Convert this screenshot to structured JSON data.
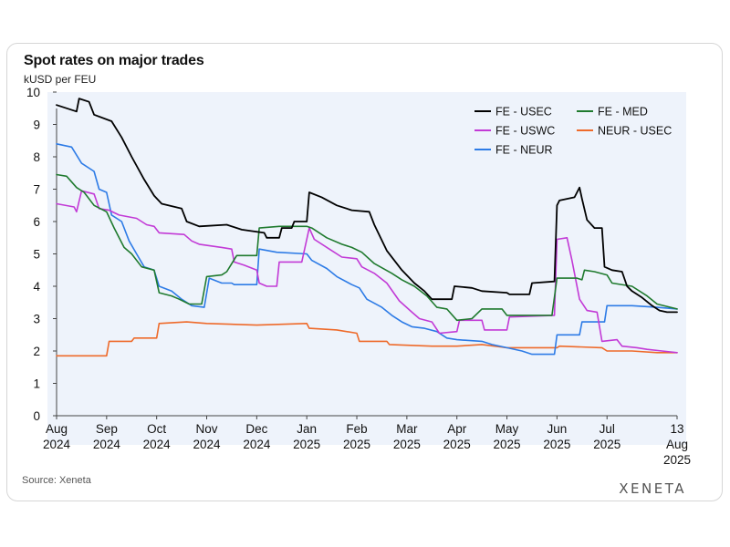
{
  "header": {
    "title": "Spot rates on major trades",
    "subtitle": "kUSD per FEU"
  },
  "footer": {
    "source": "Source: Xeneta",
    "brand": "XENETA"
  },
  "colors": {
    "plot_bg": "#eef3fb",
    "axis": "#444444",
    "FE - USEC": "#000000",
    "FE - MED": "#1f7a2e",
    "FE - USWC": "#c23ad6",
    "NEUR - USEC": "#ee6a2a",
    "FE - NEUR": "#2d7be6"
  },
  "chart_data": {
    "type": "line",
    "title": "Spot rates on major trades",
    "ylabel": "kUSD per FEU",
    "xlabel": "",
    "ylim": [
      0,
      10
    ],
    "yticks": [
      0,
      1,
      2,
      3,
      4,
      5,
      6,
      7,
      8,
      9,
      10
    ],
    "xlim": [
      0,
      12.4
    ],
    "xticks": [
      {
        "x": 0,
        "label": [
          "Aug",
          "2024"
        ]
      },
      {
        "x": 1,
        "label": [
          "Sep",
          "2024"
        ]
      },
      {
        "x": 2,
        "label": [
          "Oct",
          "2024"
        ]
      },
      {
        "x": 3,
        "label": [
          "Nov",
          "2024"
        ]
      },
      {
        "x": 4,
        "label": [
          "Dec",
          "2024"
        ]
      },
      {
        "x": 5,
        "label": [
          "Jan",
          "2025"
        ]
      },
      {
        "x": 6,
        "label": [
          "Feb",
          "2025"
        ]
      },
      {
        "x": 7,
        "label": [
          "Mar",
          "2025"
        ]
      },
      {
        "x": 8,
        "label": [
          "Apr",
          "2025"
        ]
      },
      {
        "x": 9,
        "label": [
          "May",
          "2025"
        ]
      },
      {
        "x": 10,
        "label": [
          "Jun",
          "2025"
        ]
      },
      {
        "x": 11,
        "label": [
          "Jul",
          "2025"
        ]
      },
      {
        "x": 12.4,
        "label": [
          "13",
          "Aug",
          "2025"
        ]
      }
    ],
    "legend": {
      "placement": "top-right",
      "entries": [
        "FE - USEC",
        "FE - MED",
        "FE - USWC",
        "NEUR - USEC",
        "FE - NEUR"
      ]
    },
    "series": [
      {
        "name": "FE - USEC",
        "points": [
          [
            0,
            9.6
          ],
          [
            0.4,
            9.4
          ],
          [
            0.45,
            9.8
          ],
          [
            0.65,
            9.7
          ],
          [
            0.75,
            9.3
          ],
          [
            1.1,
            9.1
          ],
          [
            1.3,
            8.6
          ],
          [
            1.5,
            8.0
          ],
          [
            1.75,
            7.3
          ],
          [
            1.95,
            6.8
          ],
          [
            2.1,
            6.55
          ],
          [
            2.5,
            6.4
          ],
          [
            2.6,
            6.0
          ],
          [
            2.85,
            5.85
          ],
          [
            3.4,
            5.9
          ],
          [
            3.7,
            5.75
          ],
          [
            4.15,
            5.65
          ],
          [
            4.2,
            5.5
          ],
          [
            4.45,
            5.5
          ],
          [
            4.5,
            5.8
          ],
          [
            4.7,
            5.8
          ],
          [
            4.75,
            6.0
          ],
          [
            5.0,
            6.0
          ],
          [
            5.05,
            6.9
          ],
          [
            5.3,
            6.75
          ],
          [
            5.6,
            6.5
          ],
          [
            5.9,
            6.35
          ],
          [
            6.25,
            6.3
          ],
          [
            6.35,
            5.9
          ],
          [
            6.6,
            5.1
          ],
          [
            6.9,
            4.5
          ],
          [
            7.15,
            4.1
          ],
          [
            7.35,
            3.85
          ],
          [
            7.5,
            3.6
          ],
          [
            7.9,
            3.6
          ],
          [
            7.95,
            4.0
          ],
          [
            8.3,
            3.95
          ],
          [
            8.5,
            3.85
          ],
          [
            9.0,
            3.8
          ],
          [
            9.05,
            3.75
          ],
          [
            9.45,
            3.75
          ],
          [
            9.5,
            4.1
          ],
          [
            9.95,
            4.15
          ],
          [
            10.0,
            6.5
          ],
          [
            10.05,
            6.65
          ],
          [
            10.35,
            6.75
          ],
          [
            10.45,
            7.05
          ],
          [
            10.5,
            6.7
          ],
          [
            10.6,
            6.05
          ],
          [
            10.75,
            5.8
          ],
          [
            10.9,
            5.8
          ],
          [
            10.95,
            4.6
          ],
          [
            11.1,
            4.5
          ],
          [
            11.3,
            4.45
          ],
          [
            11.4,
            4.0
          ],
          [
            11.5,
            3.85
          ],
          [
            11.7,
            3.65
          ],
          [
            11.9,
            3.4
          ],
          [
            12.05,
            3.25
          ],
          [
            12.2,
            3.2
          ],
          [
            12.4,
            3.2
          ]
        ]
      },
      {
        "name": "FE - MED",
        "points": [
          [
            0,
            7.45
          ],
          [
            0.2,
            7.4
          ],
          [
            0.4,
            7.05
          ],
          [
            0.55,
            6.9
          ],
          [
            0.75,
            6.5
          ],
          [
            1.0,
            6.3
          ],
          [
            1.15,
            5.8
          ],
          [
            1.35,
            5.2
          ],
          [
            1.5,
            5.0
          ],
          [
            1.7,
            4.6
          ],
          [
            1.95,
            4.5
          ],
          [
            2.05,
            3.8
          ],
          [
            2.3,
            3.7
          ],
          [
            2.45,
            3.6
          ],
          [
            2.65,
            3.45
          ],
          [
            2.9,
            3.45
          ],
          [
            3.0,
            4.3
          ],
          [
            3.3,
            4.35
          ],
          [
            3.4,
            4.45
          ],
          [
            3.6,
            4.95
          ],
          [
            4.0,
            4.95
          ],
          [
            4.05,
            5.8
          ],
          [
            4.45,
            5.85
          ],
          [
            5.0,
            5.85
          ],
          [
            5.1,
            5.8
          ],
          [
            5.4,
            5.5
          ],
          [
            5.7,
            5.3
          ],
          [
            5.9,
            5.2
          ],
          [
            6.1,
            5.05
          ],
          [
            6.35,
            4.7
          ],
          [
            6.7,
            4.4
          ],
          [
            6.9,
            4.2
          ],
          [
            7.15,
            4.0
          ],
          [
            7.4,
            3.7
          ],
          [
            7.6,
            3.35
          ],
          [
            7.8,
            3.3
          ],
          [
            8.0,
            2.95
          ],
          [
            8.3,
            3.0
          ],
          [
            8.5,
            3.3
          ],
          [
            8.9,
            3.3
          ],
          [
            9.0,
            3.1
          ],
          [
            9.9,
            3.1
          ],
          [
            10.0,
            4.25
          ],
          [
            10.4,
            4.25
          ],
          [
            10.5,
            4.2
          ],
          [
            10.55,
            4.5
          ],
          [
            10.75,
            4.45
          ],
          [
            11.0,
            4.35
          ],
          [
            11.1,
            4.1
          ],
          [
            11.5,
            4.0
          ],
          [
            11.8,
            3.7
          ],
          [
            12.0,
            3.45
          ],
          [
            12.4,
            3.3
          ]
        ]
      },
      {
        "name": "FE - USWC",
        "points": [
          [
            0,
            6.55
          ],
          [
            0.35,
            6.45
          ],
          [
            0.4,
            6.3
          ],
          [
            0.5,
            6.95
          ],
          [
            0.75,
            6.85
          ],
          [
            0.85,
            6.4
          ],
          [
            1.05,
            6.35
          ],
          [
            1.25,
            6.2
          ],
          [
            1.6,
            6.1
          ],
          [
            1.8,
            5.9
          ],
          [
            1.95,
            5.85
          ],
          [
            2.05,
            5.65
          ],
          [
            2.55,
            5.6
          ],
          [
            2.7,
            5.4
          ],
          [
            2.85,
            5.3
          ],
          [
            3.3,
            5.2
          ],
          [
            3.5,
            5.15
          ],
          [
            3.55,
            4.75
          ],
          [
            3.75,
            4.65
          ],
          [
            4.0,
            4.5
          ],
          [
            4.05,
            4.1
          ],
          [
            4.2,
            4.0
          ],
          [
            4.4,
            4.0
          ],
          [
            4.45,
            4.75
          ],
          [
            4.9,
            4.75
          ],
          [
            5.05,
            5.8
          ],
          [
            5.15,
            5.45
          ],
          [
            5.45,
            5.15
          ],
          [
            5.7,
            4.9
          ],
          [
            6.0,
            4.85
          ],
          [
            6.1,
            4.6
          ],
          [
            6.35,
            4.4
          ],
          [
            6.6,
            4.1
          ],
          [
            6.85,
            3.55
          ],
          [
            7.1,
            3.2
          ],
          [
            7.25,
            3.0
          ],
          [
            7.5,
            2.9
          ],
          [
            7.65,
            2.55
          ],
          [
            8.0,
            2.6
          ],
          [
            8.05,
            2.95
          ],
          [
            8.5,
            2.95
          ],
          [
            8.55,
            2.65
          ],
          [
            9.0,
            2.65
          ],
          [
            9.05,
            3.05
          ],
          [
            9.95,
            3.1
          ],
          [
            10.0,
            5.45
          ],
          [
            10.2,
            5.5
          ],
          [
            10.3,
            4.8
          ],
          [
            10.45,
            3.6
          ],
          [
            10.6,
            3.25
          ],
          [
            10.8,
            3.2
          ],
          [
            10.9,
            2.3
          ],
          [
            11.2,
            2.35
          ],
          [
            11.3,
            2.15
          ],
          [
            11.6,
            2.1
          ],
          [
            11.8,
            2.05
          ],
          [
            12.1,
            2.0
          ],
          [
            12.4,
            1.95
          ]
        ]
      },
      {
        "name": "NEUR - USEC",
        "points": [
          [
            0,
            1.85
          ],
          [
            1.0,
            1.85
          ],
          [
            1.05,
            2.3
          ],
          [
            1.5,
            2.3
          ],
          [
            1.55,
            2.4
          ],
          [
            2.0,
            2.4
          ],
          [
            2.05,
            2.85
          ],
          [
            2.6,
            2.9
          ],
          [
            3.0,
            2.85
          ],
          [
            4.0,
            2.8
          ],
          [
            5.0,
            2.85
          ],
          [
            5.05,
            2.7
          ],
          [
            5.6,
            2.65
          ],
          [
            6.0,
            2.55
          ],
          [
            6.05,
            2.3
          ],
          [
            6.6,
            2.3
          ],
          [
            6.65,
            2.2
          ],
          [
            7.5,
            2.15
          ],
          [
            8.0,
            2.15
          ],
          [
            8.5,
            2.2
          ],
          [
            9.0,
            2.1
          ],
          [
            9.5,
            2.1
          ],
          [
            10.0,
            2.1
          ],
          [
            10.05,
            2.15
          ],
          [
            10.9,
            2.1
          ],
          [
            11.0,
            2.0
          ],
          [
            11.5,
            2.0
          ],
          [
            12.0,
            1.95
          ],
          [
            12.4,
            1.95
          ]
        ]
      },
      {
        "name": "FE - NEUR",
        "points": [
          [
            0,
            8.4
          ],
          [
            0.3,
            8.3
          ],
          [
            0.5,
            7.8
          ],
          [
            0.75,
            7.55
          ],
          [
            0.85,
            7.0
          ],
          [
            1.0,
            6.9
          ],
          [
            1.1,
            6.2
          ],
          [
            1.3,
            6.0
          ],
          [
            1.45,
            5.4
          ],
          [
            1.6,
            5.0
          ],
          [
            1.75,
            4.6
          ],
          [
            1.95,
            4.5
          ],
          [
            2.05,
            4.0
          ],
          [
            2.3,
            3.85
          ],
          [
            2.5,
            3.6
          ],
          [
            2.7,
            3.4
          ],
          [
            2.95,
            3.35
          ],
          [
            3.05,
            4.25
          ],
          [
            3.3,
            4.1
          ],
          [
            3.5,
            4.1
          ],
          [
            3.55,
            4.05
          ],
          [
            4.0,
            4.05
          ],
          [
            4.05,
            5.15
          ],
          [
            4.4,
            5.05
          ],
          [
            5.0,
            5.0
          ],
          [
            5.1,
            4.8
          ],
          [
            5.4,
            4.55
          ],
          [
            5.6,
            4.3
          ],
          [
            5.9,
            4.05
          ],
          [
            6.05,
            3.95
          ],
          [
            6.2,
            3.6
          ],
          [
            6.5,
            3.35
          ],
          [
            6.7,
            3.1
          ],
          [
            6.9,
            2.9
          ],
          [
            7.1,
            2.75
          ],
          [
            7.35,
            2.7
          ],
          [
            7.6,
            2.6
          ],
          [
            7.8,
            2.4
          ],
          [
            8.0,
            2.35
          ],
          [
            8.5,
            2.3
          ],
          [
            8.7,
            2.2
          ],
          [
            9.0,
            2.1
          ],
          [
            9.3,
            2.0
          ],
          [
            9.5,
            1.9
          ],
          [
            9.95,
            1.9
          ],
          [
            10.0,
            2.5
          ],
          [
            10.45,
            2.5
          ],
          [
            10.5,
            2.9
          ],
          [
            10.95,
            2.9
          ],
          [
            11.0,
            3.4
          ],
          [
            11.5,
            3.4
          ],
          [
            12.0,
            3.35
          ],
          [
            12.4,
            3.3
          ]
        ]
      }
    ]
  }
}
